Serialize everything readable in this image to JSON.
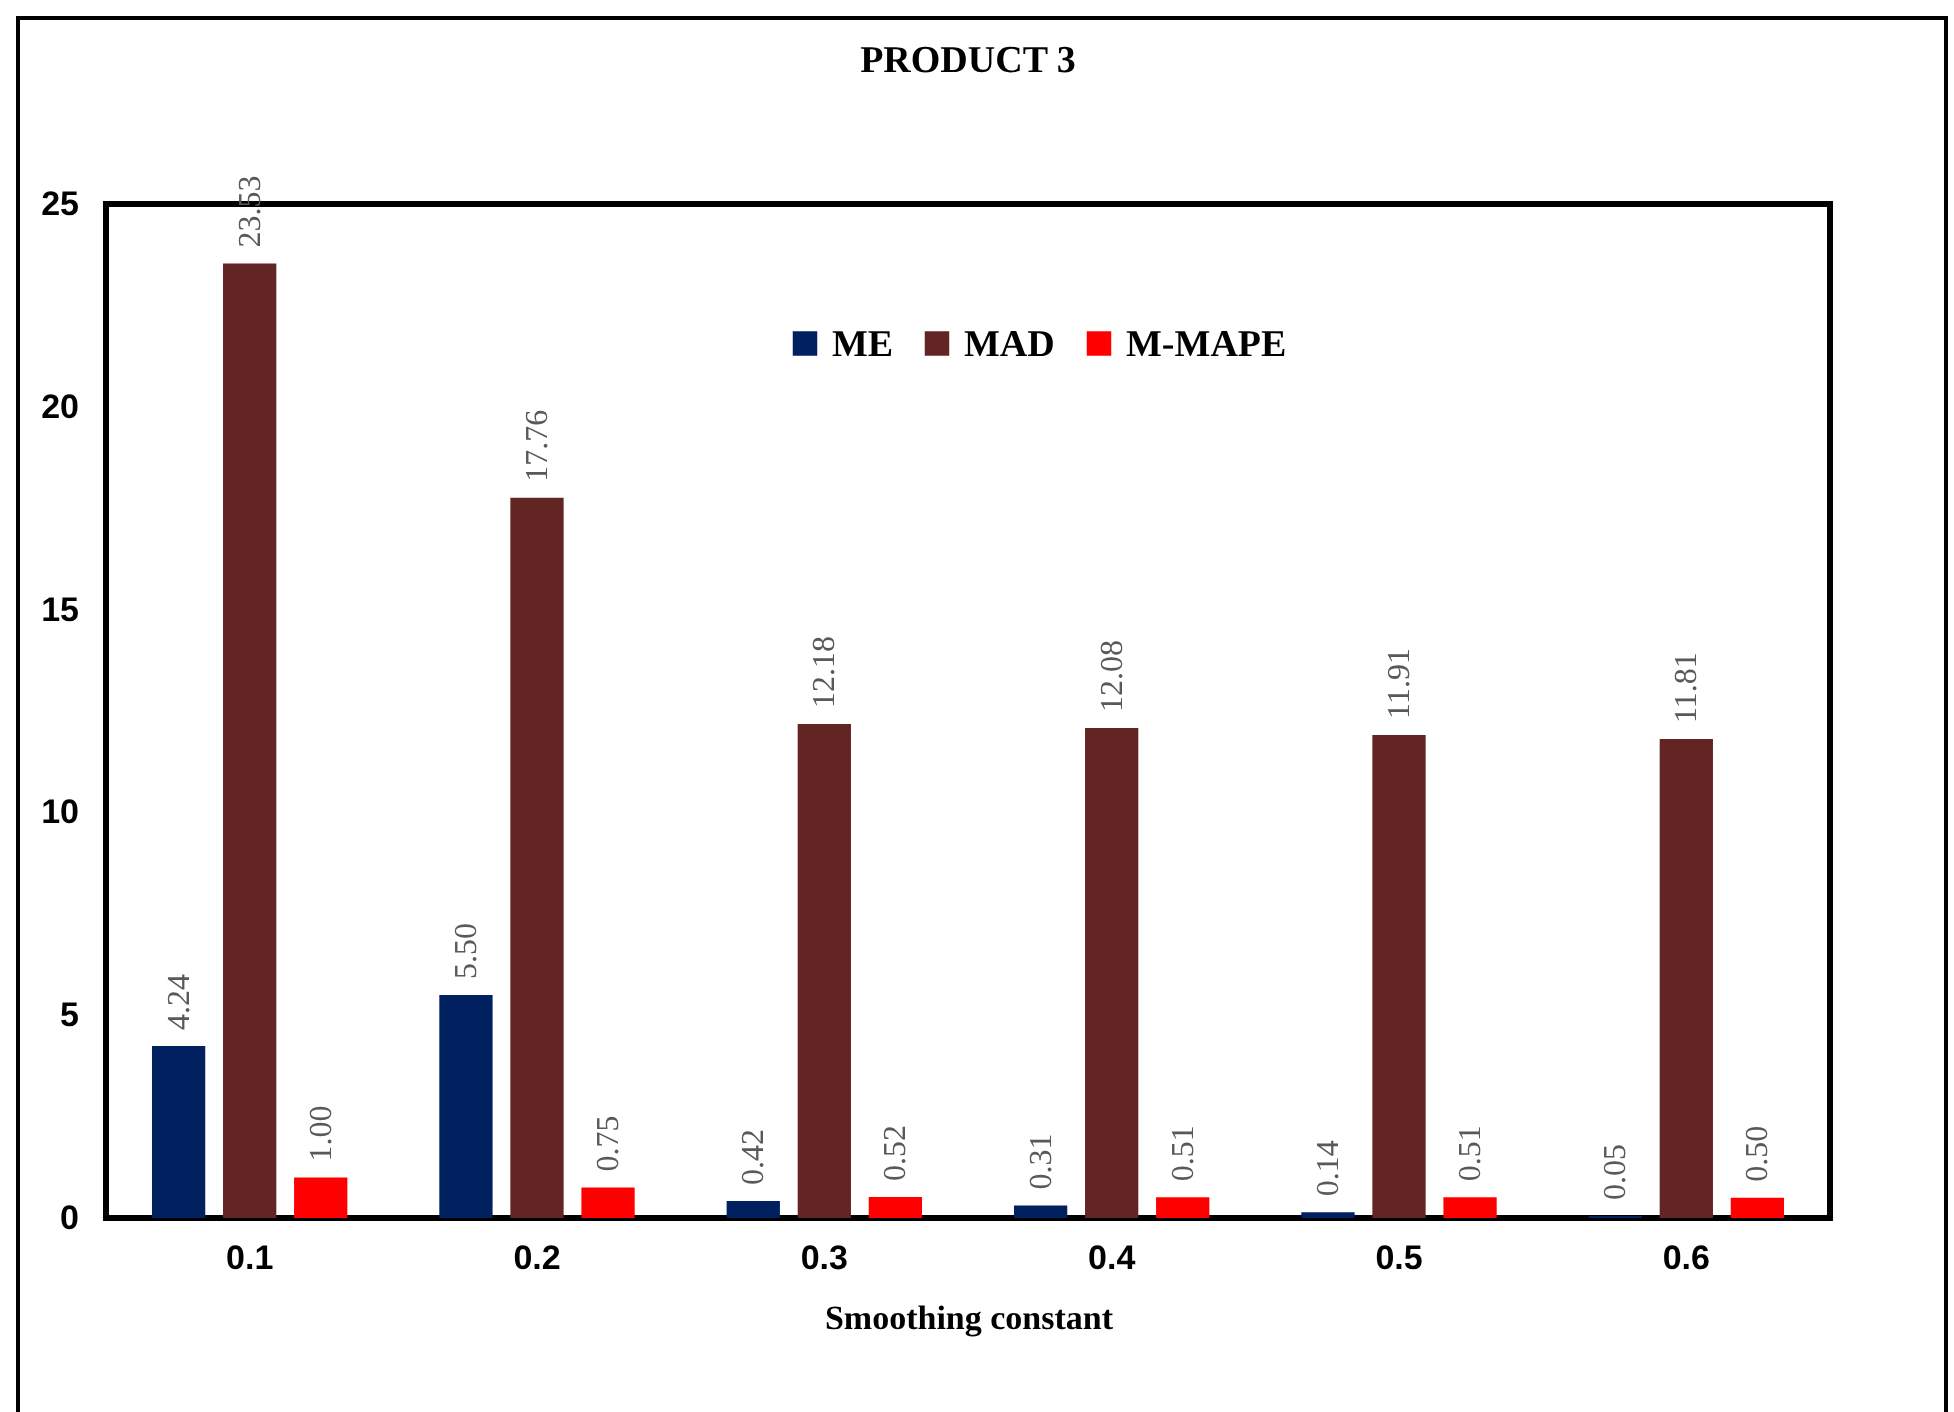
{
  "chart_data": {
    "type": "bar",
    "title": "PRODUCT 3",
    "xlabel": "Smoothing constant",
    "categories": [
      "0.1",
      "0.2",
      "0.3",
      "0.4",
      "0.5",
      "0.6"
    ],
    "series": [
      {
        "name": "ME",
        "color": "#002060",
        "values": [
          4.24,
          5.5,
          0.42,
          0.31,
          0.14,
          0.05
        ],
        "value_labels": [
          "4.24",
          "5.50",
          "0.42",
          "0.31",
          "0.14",
          "0.05"
        ]
      },
      {
        "name": "MAD",
        "color": "#632523",
        "values": [
          23.53,
          17.76,
          12.18,
          12.08,
          11.91,
          11.81
        ],
        "value_labels": [
          "23.53",
          "17.76",
          "12.18",
          "12.08",
          "11.91",
          "11.81"
        ]
      },
      {
        "name": "M-MAPE",
        "color": "#ff0000",
        "values": [
          1.0,
          0.75,
          0.52,
          0.51,
          0.51,
          0.5
        ],
        "value_labels": [
          "1.00",
          "0.75",
          "0.52",
          "0.51",
          "0.51",
          "0.50"
        ]
      }
    ],
    "ylim": [
      0,
      25
    ],
    "yticks": [
      0,
      5,
      10,
      15,
      20,
      25
    ],
    "grid": false,
    "legend": "top"
  }
}
